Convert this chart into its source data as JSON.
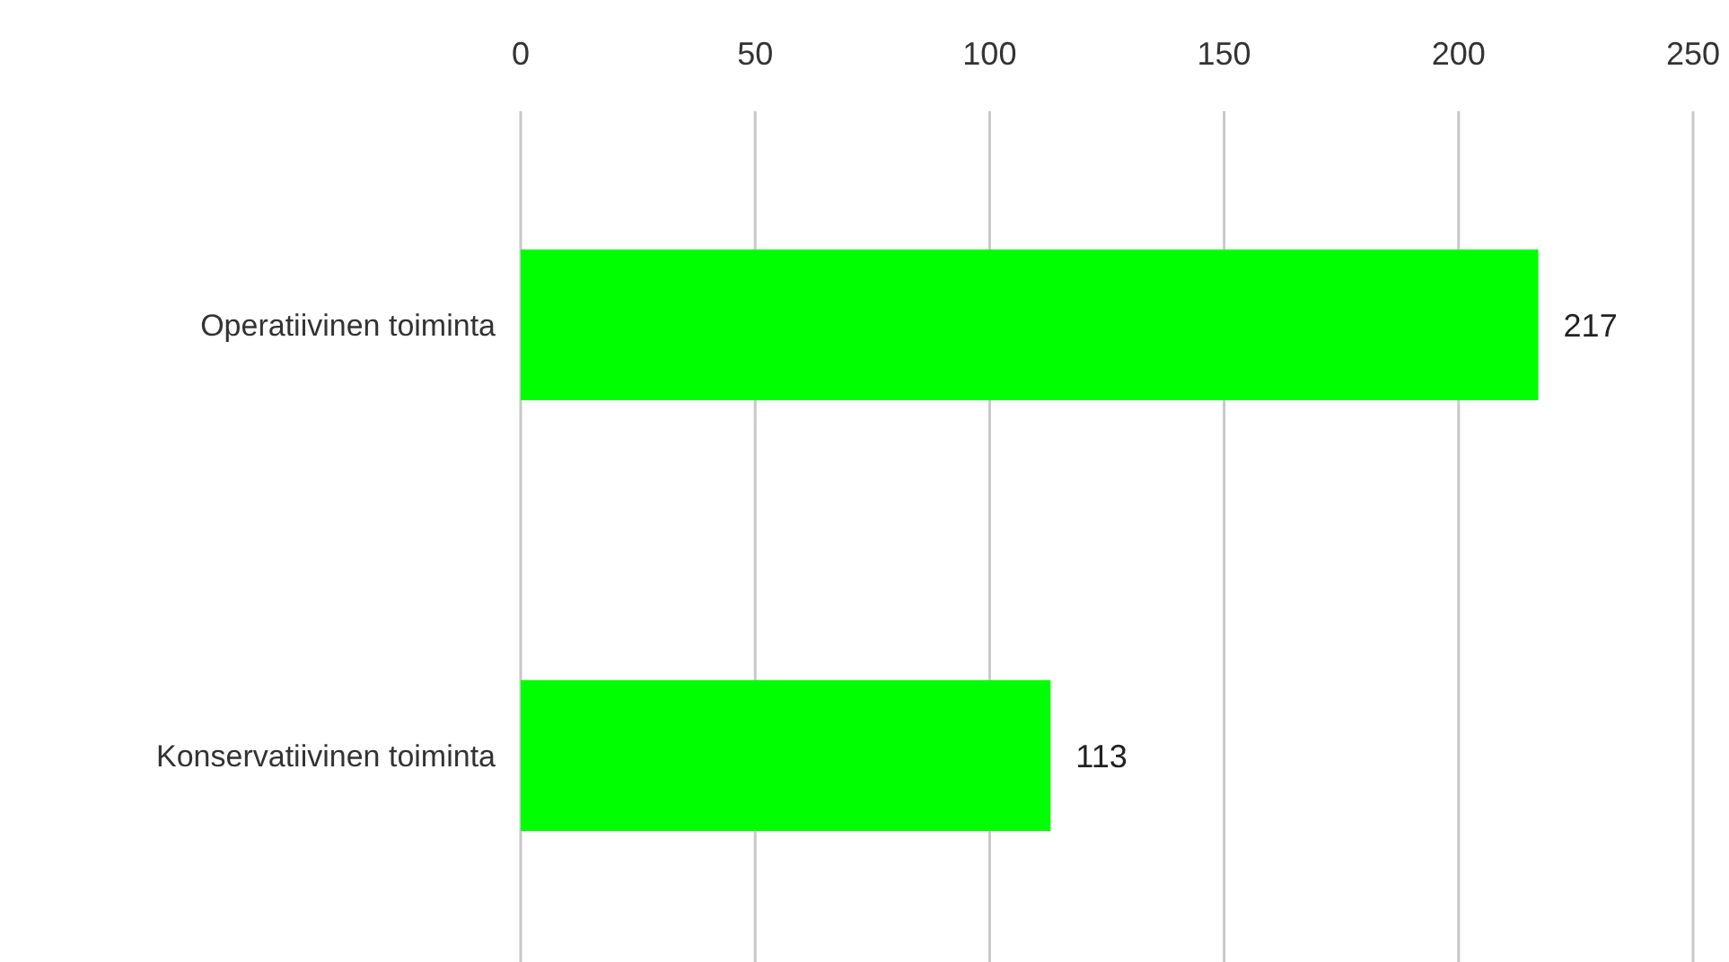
{
  "chart_data": {
    "type": "bar",
    "orientation": "horizontal",
    "categories": [
      "Operatiivinen toiminta",
      "Konservatiivinen toiminta"
    ],
    "values": [
      217,
      113
    ],
    "color": "#00ff00",
    "xlim": [
      0,
      250
    ],
    "xticks": [
      0,
      50,
      100,
      150,
      200,
      250
    ],
    "grid": "x",
    "data_labels": true
  }
}
